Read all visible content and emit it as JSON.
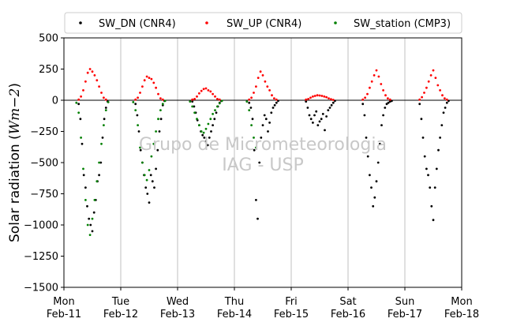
{
  "chart_data": {
    "type": "scatter",
    "ylabel": "Solar radiation ($Wm−2$)",
    "ylabel_parts": {
      "main": "Solar radiation (",
      "math": "Wm−2",
      "close": ")"
    },
    "ylim": [
      -1500,
      500
    ],
    "xlim": [
      0,
      7
    ],
    "x_unit": "days since Mon Feb-11",
    "grid": "vertical",
    "legend_position": "top",
    "yticks": [
      "−1500",
      "−1250",
      "−1000",
      "−750",
      "−500",
      "−250",
      "0",
      "250",
      "500"
    ],
    "ytick_values": [
      -1500,
      -1250,
      -1000,
      -750,
      -500,
      -250,
      0,
      250,
      500
    ],
    "xticks": [
      {
        "day": "Mon",
        "date": "Feb-11"
      },
      {
        "day": "Tue",
        "date": "Feb-12"
      },
      {
        "day": "Wed",
        "date": "Feb-13"
      },
      {
        "day": "Thu",
        "date": "Feb-14"
      },
      {
        "day": "Fri",
        "date": "Feb-15"
      },
      {
        "day": "Sat",
        "date": "Feb-16"
      },
      {
        "day": "Sun",
        "date": "Feb-17"
      },
      {
        "day": "Mon",
        "date": "Feb-18"
      }
    ],
    "series": [
      {
        "name": "SW_DN (CNR4)",
        "color": "#000000",
        "x": [
          0.26,
          0.29,
          0.32,
          0.35,
          0.38,
          0.41,
          0.44,
          0.47,
          0.5,
          0.53,
          0.56,
          0.59,
          0.62,
          0.65,
          0.68,
          0.71,
          0.74,
          0.77,
          1.26,
          1.29,
          1.32,
          1.35,
          1.38,
          1.41,
          1.44,
          1.47,
          1.5,
          1.53,
          1.56,
          1.59,
          1.62,
          1.65,
          1.68,
          1.71,
          1.74,
          1.77,
          2.26,
          2.29,
          2.32,
          2.35,
          2.38,
          2.41,
          2.44,
          2.47,
          2.5,
          2.53,
          2.56,
          2.59,
          2.62,
          2.65,
          2.68,
          2.71,
          2.74,
          2.77,
          3.26,
          3.29,
          3.32,
          3.35,
          3.38,
          3.41,
          3.44,
          3.47,
          3.5,
          3.53,
          3.56,
          3.59,
          3.62,
          3.65,
          3.68,
          3.71,
          3.74,
          3.77,
          4.26,
          4.29,
          4.32,
          4.35,
          4.38,
          4.41,
          4.44,
          4.47,
          4.5,
          4.53,
          4.56,
          4.59,
          4.62,
          4.65,
          4.68,
          4.71,
          4.74,
          4.77,
          5.26,
          5.29,
          5.32,
          5.35,
          5.38,
          5.41,
          5.44,
          5.47,
          5.5,
          5.53,
          5.56,
          5.59,
          5.62,
          5.65,
          5.68,
          5.71,
          5.74,
          5.77,
          6.26,
          6.29,
          6.32,
          6.35,
          6.38,
          6.41,
          6.44,
          6.47,
          6.5,
          6.53,
          6.56,
          6.59,
          6.62,
          6.65,
          6.68,
          6.71,
          6.74,
          6.77
        ],
        "y": [
          -30,
          -150,
          -350,
          -600,
          -700,
          -850,
          -950,
          -1000,
          -1050,
          -900,
          -800,
          -650,
          -600,
          -500,
          -300,
          -150,
          -60,
          -10,
          -30,
          -120,
          -250,
          -400,
          -500,
          -600,
          -700,
          -750,
          -820,
          -600,
          -650,
          -700,
          -550,
          -400,
          -250,
          -150,
          -40,
          -5,
          -10,
          -50,
          -100,
          -160,
          -200,
          -250,
          -280,
          -300,
          -330,
          -360,
          -300,
          -250,
          -200,
          -150,
          -100,
          -50,
          -20,
          -5,
          -20,
          -60,
          -150,
          -400,
          -800,
          -950,
          -500,
          -300,
          -200,
          -120,
          -150,
          -250,
          -180,
          -100,
          -60,
          -40,
          -20,
          -5,
          -10,
          -60,
          -120,
          -150,
          -180,
          -120,
          -90,
          -200,
          -170,
          -150,
          -110,
          -240,
          -130,
          -80,
          -60,
          -40,
          -20,
          -5,
          -30,
          -120,
          -300,
          -450,
          -600,
          -700,
          -850,
          -780,
          -650,
          -500,
          -350,
          -200,
          -120,
          -60,
          -30,
          -20,
          -10,
          -5,
          -30,
          -150,
          -300,
          -450,
          -550,
          -600,
          -700,
          -850,
          -960,
          -700,
          -550,
          -400,
          -300,
          -200,
          -100,
          -60,
          -20,
          -5
        ]
      },
      {
        "name": "SW_UP (CNR4)",
        "color": "#ff0000",
        "x": [
          0.26,
          0.3,
          0.34,
          0.38,
          0.42,
          0.46,
          0.5,
          0.54,
          0.58,
          0.62,
          0.66,
          0.7,
          0.74,
          1.26,
          1.3,
          1.34,
          1.38,
          1.42,
          1.46,
          1.5,
          1.54,
          1.58,
          1.62,
          1.66,
          1.7,
          1.74,
          2.26,
          2.3,
          2.34,
          2.38,
          2.42,
          2.46,
          2.5,
          2.54,
          2.58,
          2.62,
          2.66,
          2.7,
          2.74,
          3.26,
          3.3,
          3.34,
          3.38,
          3.42,
          3.46,
          3.5,
          3.54,
          3.58,
          3.62,
          3.66,
          3.7,
          3.74,
          4.26,
          4.3,
          4.34,
          4.38,
          4.42,
          4.46,
          4.5,
          4.54,
          4.58,
          4.62,
          4.66,
          4.7,
          4.74,
          5.26,
          5.3,
          5.34,
          5.38,
          5.42,
          5.46,
          5.5,
          5.54,
          5.58,
          5.62,
          5.66,
          5.7,
          5.74,
          6.26,
          6.3,
          6.34,
          6.38,
          6.42,
          6.46,
          6.5,
          6.54,
          6.58,
          6.62,
          6.66,
          6.7,
          6.74
        ],
        "y": [
          5,
          30,
          80,
          150,
          220,
          250,
          230,
          200,
          160,
          110,
          60,
          20,
          5,
          5,
          20,
          60,
          110,
          160,
          190,
          180,
          170,
          140,
          100,
          50,
          15,
          5,
          5,
          10,
          30,
          55,
          75,
          90,
          95,
          80,
          70,
          50,
          30,
          10,
          5,
          5,
          20,
          60,
          110,
          180,
          230,
          200,
          150,
          110,
          80,
          40,
          15,
          5,
          5,
          10,
          20,
          30,
          35,
          40,
          38,
          35,
          30,
          25,
          15,
          8,
          3,
          5,
          20,
          50,
          100,
          150,
          200,
          240,
          190,
          130,
          80,
          40,
          15,
          5,
          5,
          25,
          60,
          100,
          150,
          200,
          240,
          180,
          120,
          80,
          40,
          15,
          5
        ]
      },
      {
        "name": "SW_station (CMP3)",
        "color": "#008000",
        "x": [
          0.22,
          0.26,
          0.3,
          0.34,
          0.38,
          0.42,
          0.46,
          0.5,
          0.54,
          0.58,
          0.62,
          0.66,
          0.7,
          0.74,
          0.78,
          1.22,
          1.26,
          1.3,
          1.34,
          1.38,
          1.42,
          1.46,
          1.5,
          1.54,
          1.58,
          1.62,
          1.66,
          1.7,
          1.74,
          1.78,
          2.22,
          2.26,
          2.3,
          2.34,
          2.38,
          2.42,
          2.46,
          2.5,
          2.54,
          2.58,
          2.62,
          2.66,
          2.7,
          2.74,
          2.78,
          3.22,
          3.26,
          3.3,
          3.34,
          3.38
        ],
        "y": [
          -20,
          -100,
          -300,
          -550,
          -800,
          -1000,
          -1080,
          -950,
          -800,
          -650,
          -500,
          -350,
          -200,
          -80,
          -15,
          -15,
          -80,
          -200,
          -380,
          -500,
          -600,
          -640,
          -560,
          -450,
          -350,
          -250,
          -150,
          -80,
          -30,
          -5,
          -10,
          -50,
          -100,
          -150,
          -200,
          -250,
          -260,
          -230,
          -190,
          -150,
          -110,
          -80,
          -50,
          -25,
          -5,
          -10,
          -80,
          -200,
          -300,
          -380
        ]
      }
    ],
    "watermark": [
      "Grupo de Micrometeorologia",
      "IAG - USP"
    ]
  }
}
